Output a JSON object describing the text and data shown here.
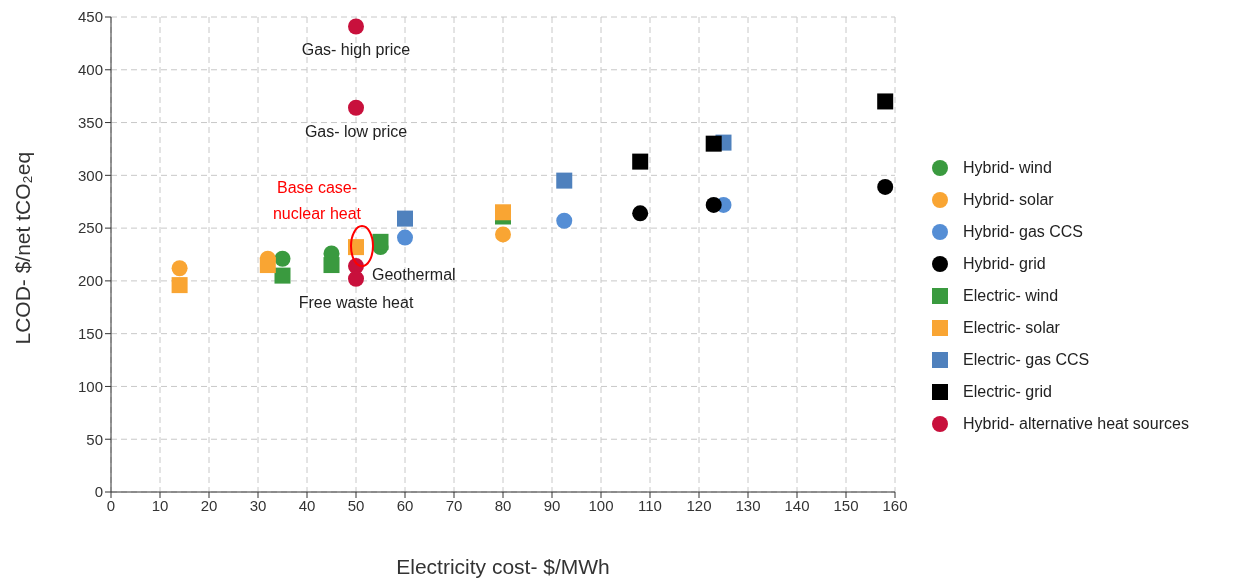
{
  "chart_data": {
    "type": "scatter",
    "xlabel": "Electricity cost- $/MWh",
    "ylabel": "LCOD- $/net tCO₂eq",
    "xlim": [
      0,
      160
    ],
    "xticks": [
      0,
      10,
      20,
      30,
      40,
      50,
      60,
      70,
      80,
      90,
      100,
      110,
      120,
      130,
      140,
      150,
      160
    ],
    "ylim": [
      0,
      450
    ],
    "yticks": [
      0,
      50,
      100,
      150,
      200,
      250,
      300,
      350,
      400,
      450
    ],
    "grid": true,
    "legend": "right",
    "series": [
      {
        "name": "Hybrid- wind",
        "color": "#3a9a3f",
        "marker": "circle",
        "x": [
          35,
          45,
          55
        ],
        "values": [
          221,
          226,
          232
        ]
      },
      {
        "name": "Hybrid- solar",
        "color": "#f9a533",
        "marker": "circle",
        "x": [
          14,
          32,
          80
        ],
        "values": [
          212,
          221,
          244
        ]
      },
      {
        "name": "Hybrid- gas CCS",
        "color": "#558ed5",
        "marker": "circle",
        "x": [
          60,
          92.5,
          125
        ],
        "values": [
          241,
          257,
          272
        ]
      },
      {
        "name": "Hybrid- grid",
        "color": "#000000",
        "marker": "circle",
        "x": [
          108,
          123,
          158
        ],
        "values": [
          264,
          272,
          289
        ]
      },
      {
        "name": "Electric- wind",
        "color": "#3a9a3f",
        "marker": "square",
        "x": [
          35,
          45,
          55,
          80
        ],
        "values": [
          205,
          215,
          237,
          261
        ]
      },
      {
        "name": "Electric- solar",
        "color": "#f9a533",
        "marker": "square",
        "x": [
          14,
          32,
          50,
          80
        ],
        "values": [
          196,
          215,
          232,
          265
        ]
      },
      {
        "name": "Electric- gas CCS",
        "color": "#4f81bd",
        "marker": "square",
        "x": [
          60,
          92.5,
          125
        ],
        "values": [
          259,
          295,
          331
        ]
      },
      {
        "name": "Electric- grid",
        "color": "#000000",
        "marker": "square",
        "x": [
          108,
          123,
          158
        ],
        "values": [
          313,
          330,
          370
        ]
      },
      {
        "name": "Hybrid- alternative heat sources",
        "color": "#c8103c",
        "marker": "circle",
        "x": [
          50,
          50,
          50,
          50
        ],
        "values": [
          441,
          364,
          214,
          202
        ]
      }
    ],
    "annotations": [
      "Gas- high price",
      "Gas- low price",
      "Base case- nuclear heat",
      "Geothermal",
      "Free waste heat"
    ]
  }
}
